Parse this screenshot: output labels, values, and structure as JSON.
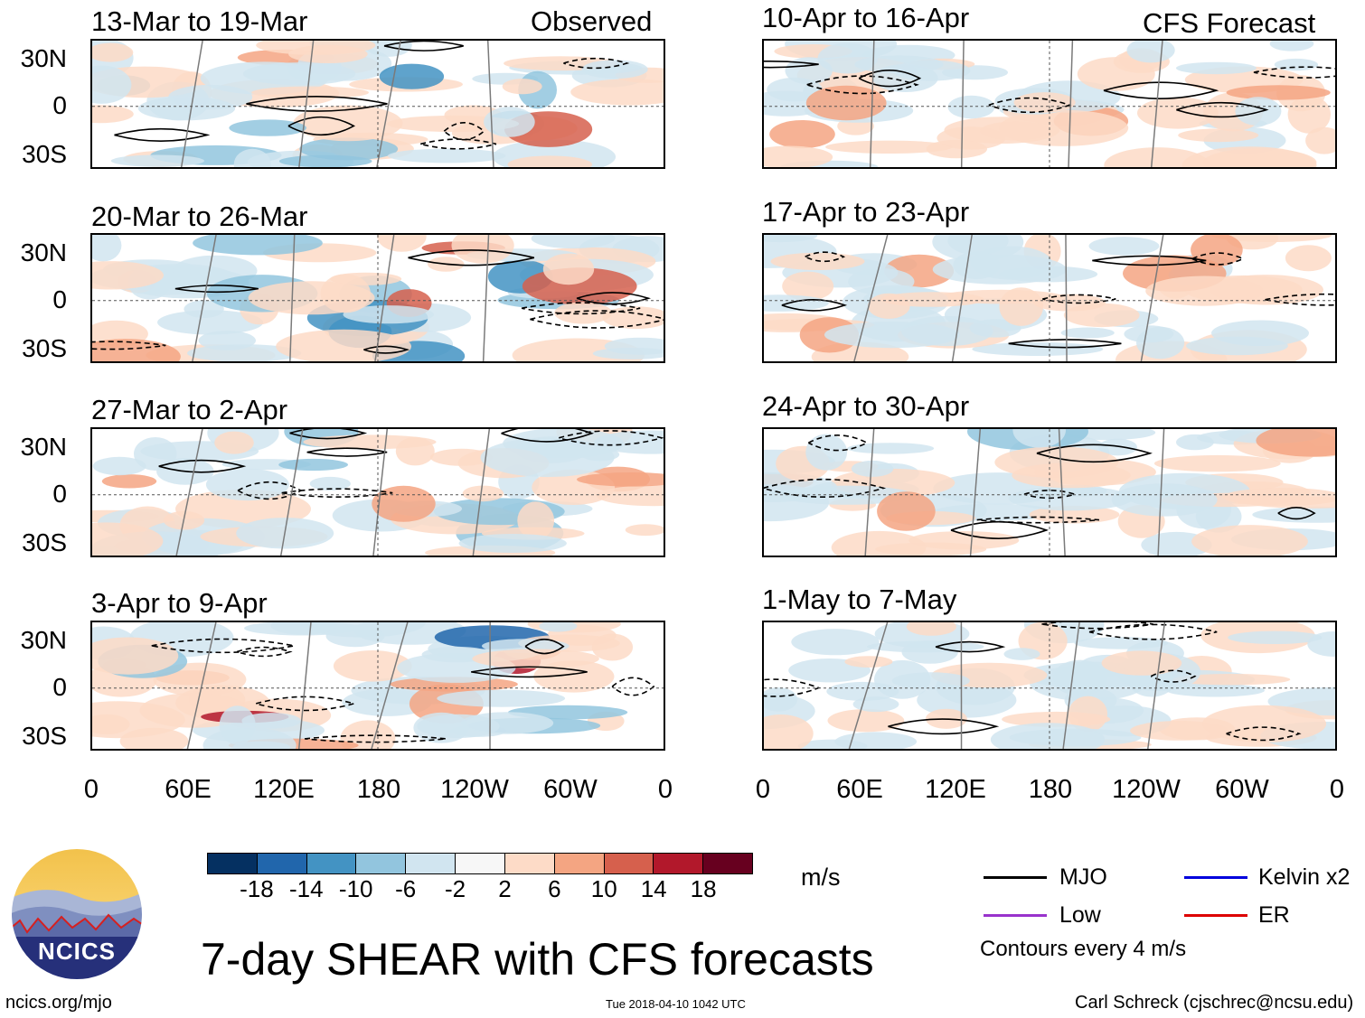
{
  "headers": {
    "left": "Observed",
    "right": "CFS Forecast"
  },
  "panels_left": [
    {
      "title": "13-Mar to 19-Mar"
    },
    {
      "title": "20-Mar to 26-Mar"
    },
    {
      "title": "27-Mar to 2-Apr"
    },
    {
      "title": "3-Apr to 9-Apr"
    }
  ],
  "panels_right": [
    {
      "title": "10-Apr to 16-Apr"
    },
    {
      "title": "17-Apr to 23-Apr"
    },
    {
      "title": "24-Apr to 30-Apr"
    },
    {
      "title": "1-May to 7-May"
    }
  ],
  "lat_labels": [
    "30N",
    "0",
    "30S"
  ],
  "lon_labels": [
    "0",
    "60E",
    "120E",
    "180",
    "120W",
    "60W",
    "0"
  ],
  "colorbar": {
    "labels": [
      "-18",
      "-14",
      "-10",
      "-6",
      "-2",
      "2",
      "6",
      "10",
      "14",
      "18"
    ],
    "colors": [
      "#053061",
      "#2166ac",
      "#4393c3",
      "#92c5de",
      "#d1e5f0",
      "#f7f7f7",
      "#fddbc7",
      "#f4a582",
      "#d6604d",
      "#b2182b",
      "#67001f"
    ],
    "units": "m/s"
  },
  "legend": {
    "items": [
      {
        "label": "MJO",
        "color": "#000000"
      },
      {
        "label": "Kelvin x2",
        "color": "#0000dd"
      },
      {
        "label": "Low",
        "color": "#9933cc"
      },
      {
        "label": "ER",
        "color": "#dd0000"
      }
    ],
    "note": "Contours every 4 m/s"
  },
  "logo": {
    "text": "NCICS"
  },
  "title": "7-day SHEAR with CFS forecasts",
  "footer": {
    "url": "ncics.org/mjo",
    "timestamp": "Tue 2018-04-10 1042 UTC",
    "credit": "Carl Schreck (cjschrec@ncsu.edu)"
  }
}
